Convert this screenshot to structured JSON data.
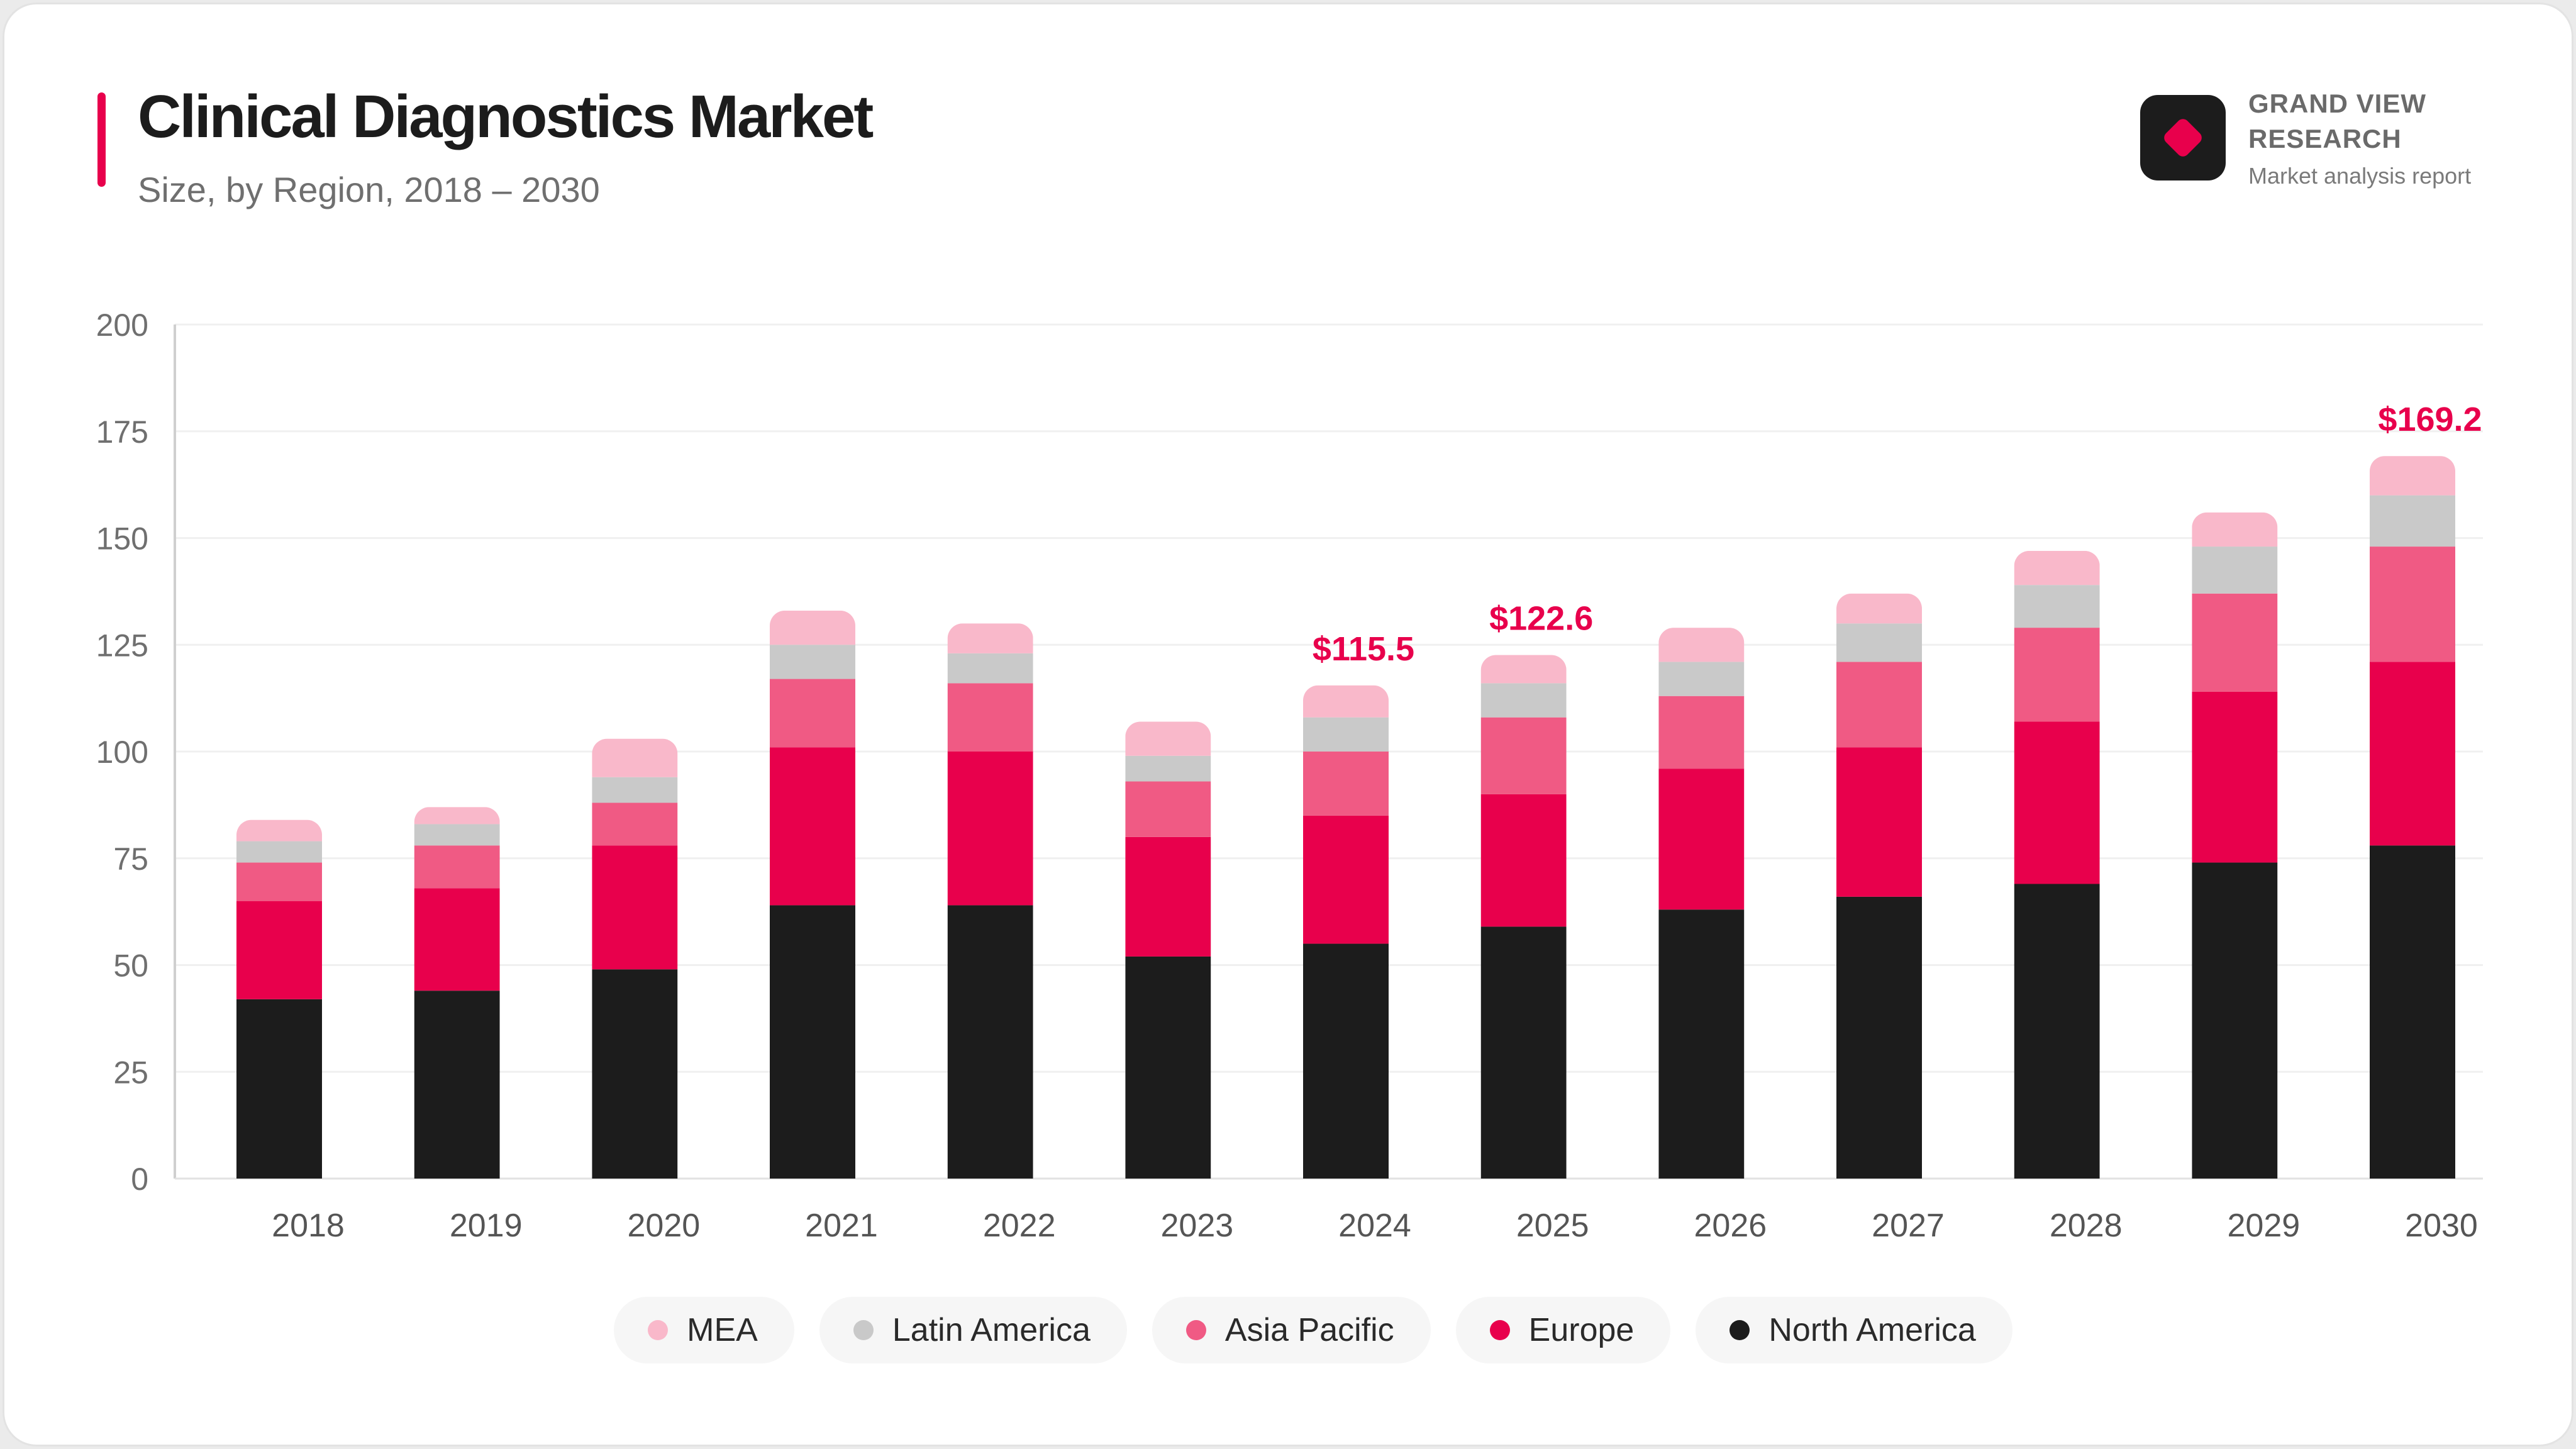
{
  "header": {
    "title": "Clinical Diagnostics Market",
    "subtitle": "Size, by Region, 2018 – 2030"
  },
  "brand": {
    "name": "GRAND VIEW\nRESEARCH",
    "tagline": "Market analysis report",
    "icon": "diamond-logo-icon"
  },
  "colors": {
    "accent": "#e8004c",
    "North America": "#1c1c1c",
    "Europe": "#e8004c",
    "Asia Pacific": "#f05a84",
    "Latin America": "#c9c9c9",
    "MEA": "#f9b8ca"
  },
  "chart_data": {
    "type": "bar",
    "stacked": true,
    "title": "Clinical Diagnostics Market",
    "subtitle": "Size, by Region, 2018 – 2030",
    "xlabel": "",
    "ylabel": "",
    "ylim": [
      0,
      200
    ],
    "yticks": [
      0,
      25,
      50,
      75,
      100,
      125,
      150,
      175,
      200
    ],
    "grid": true,
    "legend_position": "bottom",
    "categories": [
      "2018",
      "2019",
      "2020",
      "2021",
      "2022",
      "2023",
      "2024",
      "2025",
      "2026",
      "2027",
      "2028",
      "2029",
      "2030"
    ],
    "series": [
      {
        "name": "North America",
        "values": [
          42,
          44,
          49,
          64,
          64,
          52,
          55,
          59,
          63,
          66,
          69,
          74,
          78
        ]
      },
      {
        "name": "Europe",
        "values": [
          23,
          24,
          29,
          37,
          36,
          28,
          30,
          31,
          33,
          35,
          38,
          40,
          43
        ]
      },
      {
        "name": "Asia Pacific",
        "values": [
          9,
          10,
          10,
          16,
          16,
          13,
          15,
          18,
          17,
          20,
          22,
          23,
          27
        ]
      },
      {
        "name": "Latin America",
        "values": [
          5,
          5,
          6,
          8,
          7,
          6,
          8,
          8,
          8,
          9,
          10,
          11,
          12
        ]
      },
      {
        "name": "MEA",
        "values": [
          5,
          4,
          9,
          8,
          7,
          8,
          7.5,
          6.6,
          8,
          7,
          8,
          8,
          9.2
        ]
      }
    ],
    "annotations": [
      {
        "category": "2024",
        "label": "$115.5"
      },
      {
        "category": "2025",
        "label": "$122.6"
      },
      {
        "category": "2030",
        "label": "$169.2"
      }
    ]
  }
}
